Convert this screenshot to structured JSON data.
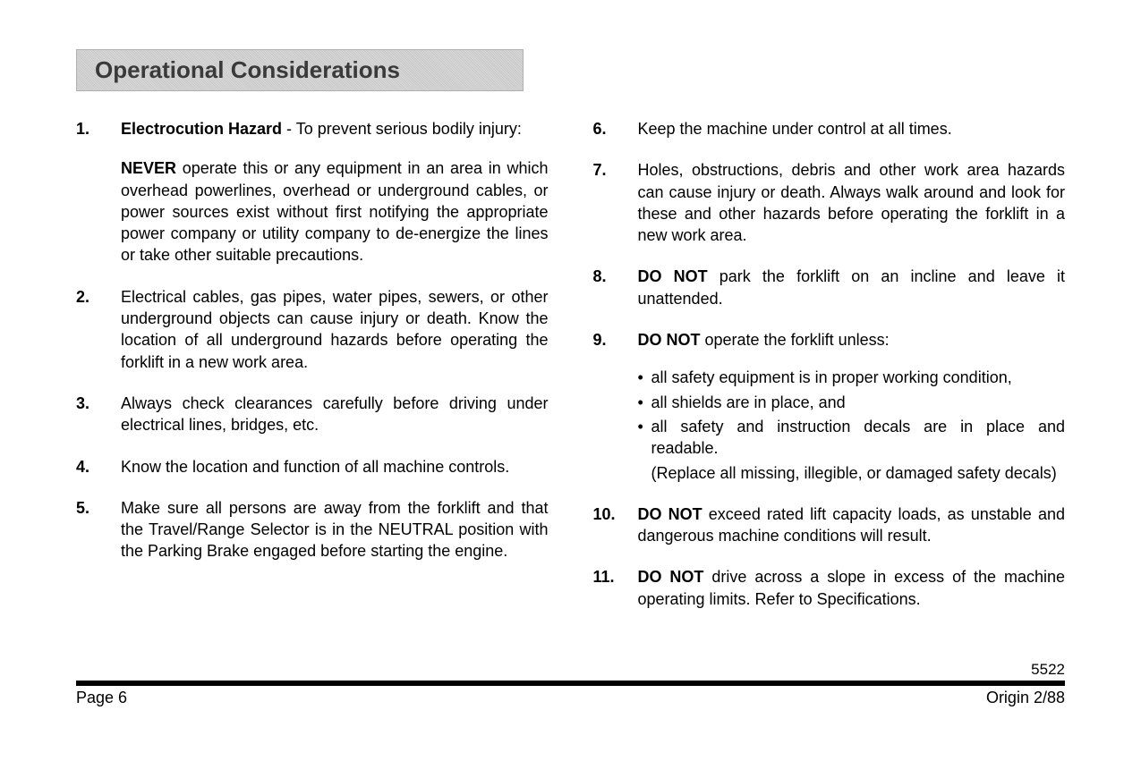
{
  "section_title": "Operational Considerations",
  "left_column": [
    {
      "number": "1.",
      "content_html": "<b>Electrocution Hazard</b> - To prevent serious bodily injury:",
      "sub_paragraph_html": "<b>NEVER</b> operate this or any equipment in an area in which overhead powerlines, overhead or underground cables, or power sources exist without first notifying the appropriate power company or utility company to de-energize the lines or take other suitable precautions."
    },
    {
      "number": "2.",
      "content_html": "Electrical cables, gas pipes, water pipes, sewers, or other underground objects can cause injury or death. Know the location of all underground hazards before operating the forklift in a new work area."
    },
    {
      "number": "3.",
      "content_html": "Always check clearances carefully before driving under electrical lines, bridges, etc."
    },
    {
      "number": "4.",
      "content_html": "Know the location and function of all machine controls."
    },
    {
      "number": "5.",
      "content_html": "Make sure all persons are away from the forklift and that the Travel/Range Selector is in the NEUTRAL position with the Parking Brake engaged before starting the engine."
    }
  ],
  "right_column": [
    {
      "number": "6.",
      "content_html": "Keep the machine under control at all times."
    },
    {
      "number": "7.",
      "content_html": "Holes, obstructions, debris and other work area hazards can cause injury or death. Always walk around and look for these and other hazards before operating the forklift in a new work area."
    },
    {
      "number": "8.",
      "content_html": "<b>DO NOT</b> park the forklift on an incline and leave it unattended."
    },
    {
      "number": "9.",
      "content_html": "<b>DO NOT</b> operate the forklift unless:",
      "bullets": [
        "all safety equipment is in proper working condition,",
        "all shields are in place, and",
        "all safety and instruction decals are in place and readable."
      ],
      "bullet_note": "(Replace all missing, illegible, or damaged safety decals)"
    },
    {
      "number": "10.",
      "content_html": "<b>DO NOT</b> exceed rated lift capacity loads, as unstable and dangerous machine conditions will result."
    },
    {
      "number": "11.",
      "content_html": "<b>DO NOT</b> drive across a slope in excess of the machine operating limits. Refer to Specifications."
    }
  ],
  "footer": {
    "doc_id": "5522",
    "page_label": "Page 6",
    "origin": "Origin 2/88"
  }
}
